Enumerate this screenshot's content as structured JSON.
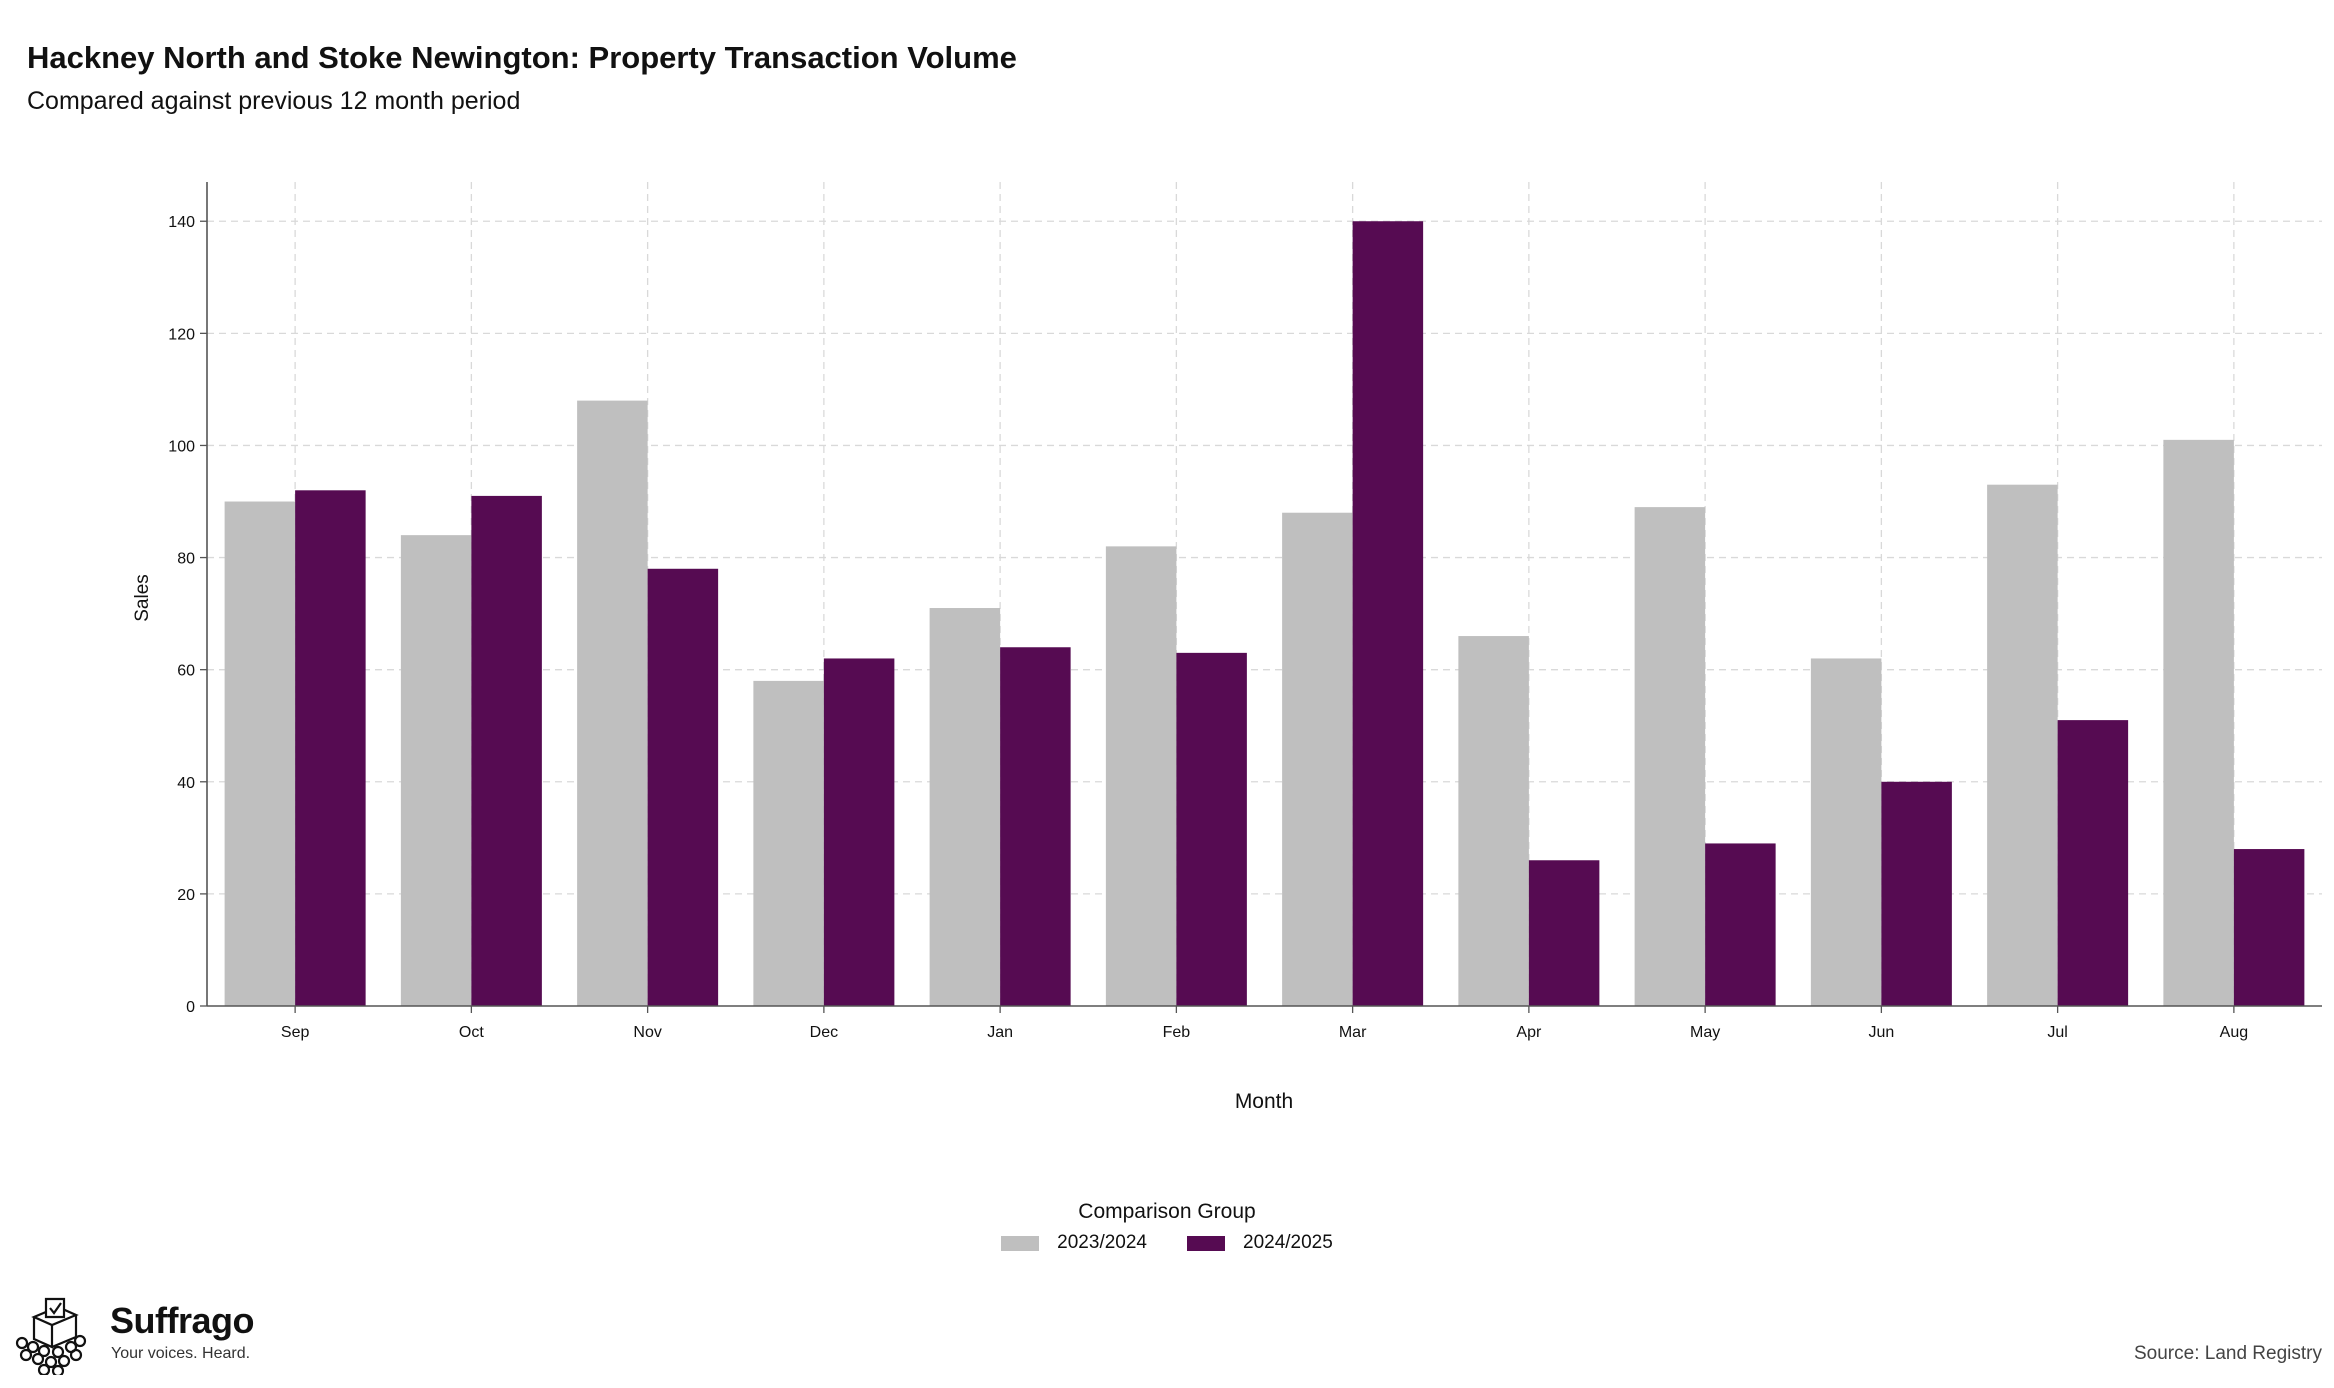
{
  "chart_data": {
    "type": "bar",
    "title": "Hackney North and Stoke Newington: Property Transaction Volume",
    "subtitle": "Compared against previous 12 month period",
    "xlabel": "Month",
    "ylabel": "Sales",
    "categories": [
      "Sep",
      "Oct",
      "Nov",
      "Dec",
      "Jan",
      "Feb",
      "Mar",
      "Apr",
      "May",
      "Jun",
      "Jul",
      "Aug"
    ],
    "series": [
      {
        "name": "2023/2024",
        "color": "#bfbfbf",
        "values": [
          90,
          84,
          108,
          58,
          71,
          82,
          88,
          66,
          89,
          62,
          93,
          101
        ]
      },
      {
        "name": "2024/2025",
        "color": "#560b52",
        "values": [
          92,
          91,
          78,
          62,
          64,
          63,
          140,
          26,
          29,
          40,
          51,
          28
        ]
      }
    ],
    "ylim": [
      0,
      147
    ],
    "yticks": [
      0,
      20,
      40,
      60,
      80,
      100,
      120,
      140
    ],
    "grid": true,
    "legend_title": "Comparison Group",
    "legend_position": "bottom-center"
  },
  "branding": {
    "name": "Suffrago",
    "tagline": "Your voices. Heard.",
    "icon": "ballot-box-crowd-icon"
  },
  "source": "Source: Land Registry"
}
